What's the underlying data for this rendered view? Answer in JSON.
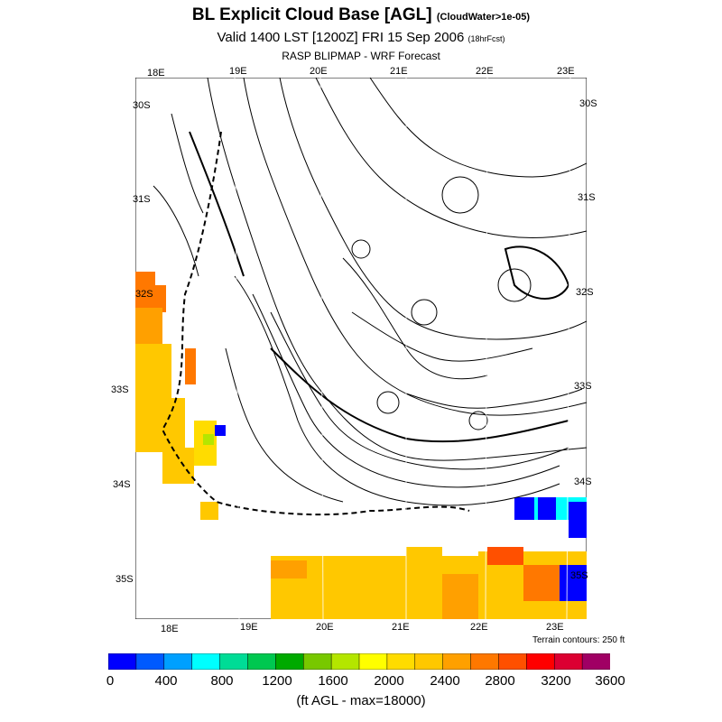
{
  "header": {
    "title": "BL Explicit Cloud Base [AGL]",
    "title_note": "(CloudWater>1e-05)",
    "valid": "Valid 1400 LST [1200Z] FRI 15 Sep 2006",
    "forecast_note": "(18hrFcst)",
    "model": "RASP BLIPMAP - WRF Forecast"
  },
  "map": {
    "top_lon_labels": [
      "18E",
      "19E",
      "20E",
      "21E",
      "22E",
      "23E"
    ],
    "bottom_lon_labels": [
      "18E",
      "19E",
      "20E",
      "21E",
      "22E",
      "23E"
    ],
    "left_lat_labels": [
      "30S",
      "31S",
      "32S",
      "33S",
      "34S",
      "35S"
    ],
    "right_lat_labels": [
      "30S",
      "31S",
      "32S",
      "33S",
      "34S",
      "35S"
    ],
    "terrain_note": "Terrain contours: 250 ft"
  },
  "colorbar": {
    "colors": [
      "#0000ff",
      "#005aff",
      "#00a0ff",
      "#00ffff",
      "#00dc96",
      "#00c850",
      "#00aa00",
      "#78c800",
      "#b4e600",
      "#ffff00",
      "#ffdc00",
      "#ffc800",
      "#ffa000",
      "#ff7800",
      "#ff5000",
      "#ff0000",
      "#dc0032",
      "#a00064"
    ],
    "labels": [
      "0",
      "400",
      "800",
      "1200",
      "1600",
      "2000",
      "2400",
      "2800",
      "3200",
      "3600"
    ],
    "units": "(ft AGL - max=18000)"
  }
}
